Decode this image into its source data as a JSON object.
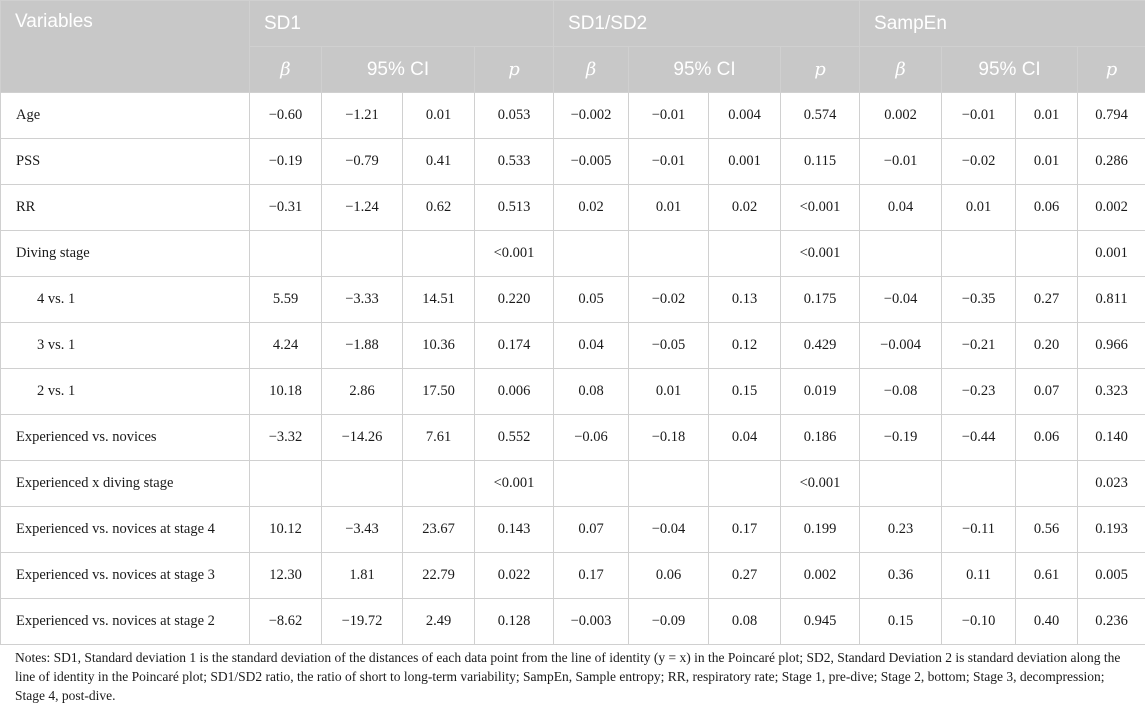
{
  "header": {
    "variables": "Variables",
    "groups": [
      "SD1",
      "SD1/SD2",
      "SampEn"
    ],
    "beta": "β",
    "ci": "95% CI",
    "p": "p"
  },
  "rows": [
    {
      "label": "Age",
      "sub": false,
      "cells": [
        "−0.60",
        "−1.21",
        "0.01",
        "0.053",
        "−0.002",
        "−0.01",
        "0.004",
        "0.574",
        "0.002",
        "−0.01",
        "0.01",
        "0.794"
      ]
    },
    {
      "label": "PSS",
      "sub": false,
      "cells": [
        "−0.19",
        "−0.79",
        "0.41",
        "0.533",
        "−0.005",
        "−0.01",
        "0.001",
        "0.115",
        "−0.01",
        "−0.02",
        "0.01",
        "0.286"
      ]
    },
    {
      "label": "RR",
      "sub": false,
      "cells": [
        "−0.31",
        "−1.24",
        "0.62",
        "0.513",
        "0.02",
        "0.01",
        "0.02",
        "<0.001",
        "0.04",
        "0.01",
        "0.06",
        "0.002"
      ]
    },
    {
      "label": "Diving stage",
      "sub": false,
      "cells": [
        "",
        "",
        "",
        "<0.001",
        "",
        "",
        "",
        "<0.001",
        "",
        "",
        "",
        "0.001"
      ]
    },
    {
      "label": "4 vs. 1",
      "sub": true,
      "cells": [
        "5.59",
        "−3.33",
        "14.51",
        "0.220",
        "0.05",
        "−0.02",
        "0.13",
        "0.175",
        "−0.04",
        "−0.35",
        "0.27",
        "0.811"
      ]
    },
    {
      "label": "3 vs. 1",
      "sub": true,
      "cells": [
        "4.24",
        "−1.88",
        "10.36",
        "0.174",
        "0.04",
        "−0.05",
        "0.12",
        "0.429",
        "−0.004",
        "−0.21",
        "0.20",
        "0.966"
      ]
    },
    {
      "label": "2 vs. 1",
      "sub": true,
      "cells": [
        "10.18",
        "2.86",
        "17.50",
        "0.006",
        "0.08",
        "0.01",
        "0.15",
        "0.019",
        "−0.08",
        "−0.23",
        "0.07",
        "0.323"
      ]
    },
    {
      "label": "Experienced vs. novices",
      "sub": false,
      "cells": [
        "−3.32",
        "−14.26",
        "7.61",
        "0.552",
        "−0.06",
        "−0.18",
        "0.04",
        "0.186",
        "−0.19",
        "−0.44",
        "0.06",
        "0.140"
      ]
    },
    {
      "label": "Experienced x diving stage",
      "sub": false,
      "cells": [
        "",
        "",
        "",
        "<0.001",
        "",
        "",
        "",
        "<0.001",
        "",
        "",
        "",
        "0.023"
      ]
    },
    {
      "label": "Experienced vs. novices at stage 4",
      "sub": false,
      "cells": [
        "10.12",
        "−3.43",
        "23.67",
        "0.143",
        "0.07",
        "−0.04",
        "0.17",
        "0.199",
        "0.23",
        "−0.11",
        "0.56",
        "0.193"
      ]
    },
    {
      "label": "Experienced vs. novices at stage 3",
      "sub": false,
      "cells": [
        "12.30",
        "1.81",
        "22.79",
        "0.022",
        "0.17",
        "0.06",
        "0.27",
        "0.002",
        "0.36",
        "0.11",
        "0.61",
        "0.005"
      ]
    },
    {
      "label": "Experienced vs. novices at stage 2",
      "sub": false,
      "cells": [
        "−8.62",
        "−19.72",
        "2.49",
        "0.128",
        "−0.003",
        "−0.09",
        "0.08",
        "0.945",
        "0.15",
        "−0.10",
        "0.40",
        "0.236"
      ]
    }
  ],
  "notes": "Notes: SD1, Standard deviation 1 is the standard deviation of the distances of each data point from the line of identity (y = x) in the Poincaré plot; SD2, Standard Deviation 2 is standard deviation along the line of identity in the Poincaré plot; SD1/SD2 ratio, the ratio of short to long-term variability; SampEn, Sample entropy; RR, respiratory rate; Stage 1, pre-dive; Stage 2, bottom; Stage 3, decompression; Stage 4, post-dive."
}
